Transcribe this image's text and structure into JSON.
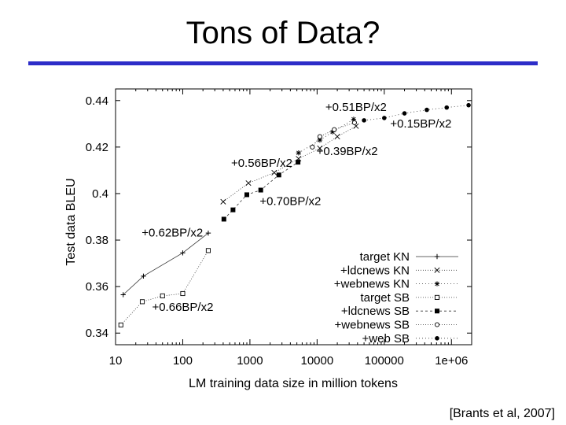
{
  "slide": {
    "title": "Tons of Data?",
    "citation": "[Brants et al, 2007]",
    "accent_color": "#2d2dc8"
  },
  "chart_data": {
    "type": "line",
    "title": "",
    "xlabel": "LM training data size in million tokens",
    "ylabel": "Test data BLEU",
    "xscale": "log",
    "xlim": [
      10,
      2000000
    ],
    "ylim": [
      0.335,
      0.445
    ],
    "xticks": [
      10,
      100,
      1000,
      10000,
      100000,
      1000000
    ],
    "xtick_labels": [
      "10",
      "100",
      "1000",
      "10000",
      "100000",
      "1e+06"
    ],
    "yticks": [
      0.34,
      0.36,
      0.38,
      0.4,
      0.42,
      0.44
    ],
    "ytick_labels": [
      "0.34",
      "0.36",
      "0.38",
      "0.4",
      "0.42",
      "0.44"
    ],
    "grid": false,
    "legend_position": "bottom-right",
    "series": [
      {
        "name": "target KN",
        "marker": "plus",
        "dash": "",
        "points": [
          [
            13,
            0.3565
          ],
          [
            26,
            0.3645
          ],
          [
            100,
            0.3745
          ],
          [
            240,
            0.383
          ]
        ]
      },
      {
        "name": "+ldcnews KN",
        "marker": "cross",
        "dash": "1,2",
        "points": [
          [
            400,
            0.3965
          ],
          [
            950,
            0.4045
          ],
          [
            2300,
            0.409
          ],
          [
            5300,
            0.415
          ],
          [
            11000,
            0.4195
          ],
          [
            20000,
            0.4245
          ],
          [
            38000,
            0.429
          ]
        ]
      },
      {
        "name": "+webnews KN",
        "marker": "asterisk",
        "dash": "1,3",
        "points": [
          [
            5300,
            0.4175
          ],
          [
            11000,
            0.423
          ],
          [
            17000,
            0.4265
          ],
          [
            35000,
            0.432
          ]
        ]
      },
      {
        "name": "target SB",
        "marker": "square-open",
        "dash": "1,2",
        "points": [
          [
            12,
            0.3435
          ],
          [
            25,
            0.3535
          ],
          [
            50,
            0.356
          ],
          [
            100,
            0.357
          ],
          [
            240,
            0.3755
          ]
        ]
      },
      {
        "name": "+ldcnews SB",
        "marker": "square-filled",
        "dash": "3,3",
        "points": [
          [
            410,
            0.389
          ],
          [
            560,
            0.393
          ],
          [
            900,
            0.3995
          ],
          [
            1450,
            0.4015
          ],
          [
            2700,
            0.408
          ],
          [
            5200,
            0.4135
          ]
        ]
      },
      {
        "name": "+webnews SB",
        "marker": "circle-open",
        "dash": "1,2",
        "points": [
          [
            8500,
            0.42
          ],
          [
            11000,
            0.4245
          ],
          [
            18000,
            0.4275
          ],
          [
            36000,
            0.4305
          ]
        ]
      },
      {
        "name": "+web SB",
        "marker": "circle-filled",
        "dash": "1,3",
        "points": [
          [
            50000,
            0.4315
          ],
          [
            100000,
            0.4325
          ],
          [
            200000,
            0.4345
          ],
          [
            430000,
            0.436
          ],
          [
            850000,
            0.437
          ],
          [
            1800000,
            0.438
          ]
        ]
      }
    ],
    "annotations": [
      {
        "text": "+0.51BP/x2",
        "x": 38000,
        "y": 0.4355
      },
      {
        "text": "+0.15BP/x2",
        "x": 350000,
        "y": 0.4285
      },
      {
        "text": "+0.56BP/x2",
        "x": 1500,
        "y": 0.4115
      },
      {
        "text": "+0.39BP/x2",
        "x": 28000,
        "y": 0.4165
      },
      {
        "text": "+0.70BP/x2",
        "x": 4000,
        "y": 0.395
      },
      {
        "text": "+0.62BP/x2",
        "x": 70,
        "y": 0.3815
      },
      {
        "text": "+0.66BP/x2",
        "x": 100,
        "y": 0.3495
      }
    ]
  }
}
